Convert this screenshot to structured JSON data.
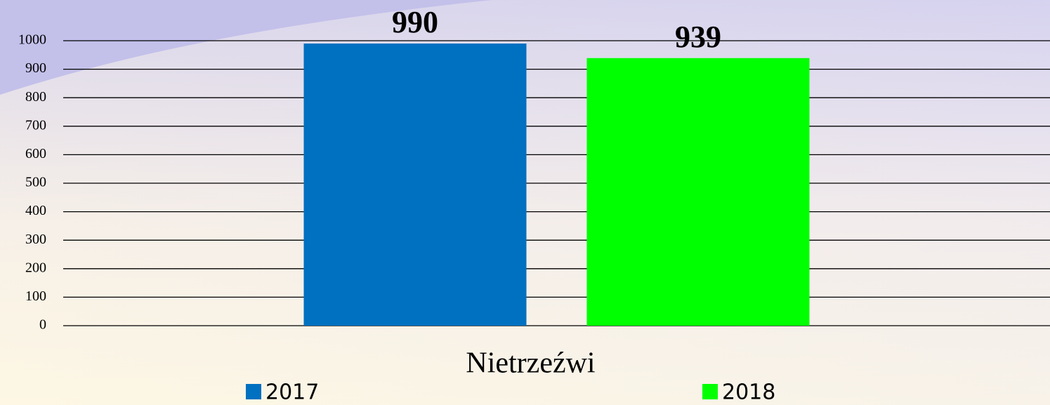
{
  "chart_data": {
    "type": "bar",
    "categories": [
      "Nietrzeźwi"
    ],
    "series": [
      {
        "name": "2017",
        "color": "#0070c0",
        "values": [
          990
        ]
      },
      {
        "name": "2018",
        "color": "#00ff00",
        "values": [
          939
        ]
      }
    ],
    "ylim": [
      0,
      1000
    ],
    "yticks": [
      0,
      100,
      200,
      300,
      400,
      500,
      600,
      700,
      800,
      900,
      1000
    ],
    "grid": true,
    "legend": "bottom"
  }
}
